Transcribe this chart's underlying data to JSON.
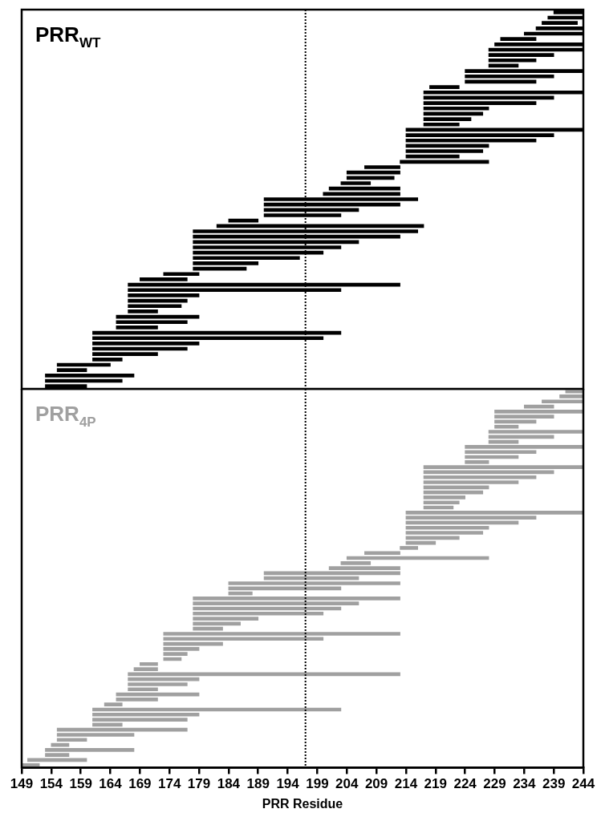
{
  "chart_data": [
    {
      "type": "bar",
      "orientation": "horizontal",
      "title": "PRR$_{WT}$",
      "tick_labels": false,
      "xlim": [
        149,
        244
      ],
      "xticks": [
        149,
        154,
        159,
        164,
        169,
        174,
        179,
        184,
        189,
        194,
        199,
        204,
        209,
        214,
        219,
        224,
        229,
        234,
        239,
        244
      ],
      "grid": false,
      "legend": false,
      "categories": [
        null,
        null,
        null,
        null,
        null,
        null,
        null,
        null,
        null,
        null,
        null,
        null,
        null,
        null,
        null,
        null,
        null,
        null,
        null,
        null,
        null,
        null,
        null,
        null,
        null,
        null,
        null,
        null,
        null,
        null,
        null,
        null,
        null,
        null,
        null,
        null,
        null,
        null,
        null,
        null,
        null,
        null,
        null,
        null,
        null,
        null,
        null,
        null,
        null,
        null,
        null,
        null,
        null,
        null,
        null,
        null,
        null,
        null,
        null,
        null,
        null,
        null,
        null,
        null,
        null,
        null,
        null,
        null,
        null,
        null,
        null
      ],
      "series": [
        {
          "color": "#000000",
          "base": [
            239,
            238,
            237,
            236,
            234,
            230,
            229,
            228,
            228,
            228,
            228,
            224,
            224,
            224,
            218,
            217,
            217,
            217,
            217,
            217,
            217,
            217,
            214,
            214,
            214,
            214,
            214,
            214,
            213,
            207,
            204,
            204,
            203,
            201,
            200,
            190,
            190,
            190,
            190,
            184,
            182,
            178,
            178,
            178,
            178,
            178,
            178,
            178,
            178,
            173,
            169,
            167,
            167,
            167,
            167,
            167,
            167,
            165,
            165,
            165,
            161,
            161,
            161,
            161,
            161,
            161,
            155,
            155,
            153,
            153,
            153
          ],
          "values": [
            5,
            6,
            6,
            8,
            10,
            6,
            15,
            16,
            11,
            8,
            5,
            20,
            15,
            12,
            5,
            27,
            22,
            19,
            11,
            10,
            8,
            6,
            30,
            25,
            22,
            14,
            13,
            9,
            15,
            6,
            9,
            8,
            5,
            12,
            13,
            26,
            23,
            16,
            13,
            5,
            35,
            38,
            35,
            28,
            25,
            22,
            18,
            11,
            9,
            6,
            8,
            46,
            36,
            12,
            10,
            9,
            5,
            14,
            12,
            7,
            42,
            39,
            18,
            16,
            11,
            5,
            9,
            5,
            15,
            13,
            7
          ]
        }
      ],
      "ref_lines": [
        {
          "axis": "x",
          "value": 197,
          "line_style": "dotted",
          "color": "#000000"
        }
      ]
    },
    {
      "type": "bar",
      "orientation": "horizontal",
      "title": "PRR$_{4P}$",
      "xlabel": "PRR Residue",
      "tick_labels": "x",
      "xlim": [
        149,
        244
      ],
      "xticks": [
        149,
        154,
        159,
        164,
        169,
        174,
        179,
        184,
        189,
        194,
        199,
        204,
        209,
        214,
        219,
        224,
        229,
        234,
        239,
        244
      ],
      "grid": false,
      "legend": false,
      "categories": [
        null,
        null,
        null,
        null,
        null,
        null,
        null,
        null,
        null,
        null,
        null,
        null,
        null,
        null,
        null,
        null,
        null,
        null,
        null,
        null,
        null,
        null,
        null,
        null,
        null,
        null,
        null,
        null,
        null,
        null,
        null,
        null,
        null,
        null,
        null,
        null,
        null,
        null,
        null,
        null,
        null,
        null,
        null,
        null,
        null,
        null,
        null,
        null,
        null,
        null,
        null,
        null,
        null,
        null,
        null,
        null,
        null,
        null,
        null,
        null,
        null,
        null,
        null,
        null,
        null,
        null,
        null,
        null,
        null,
        null,
        null,
        null,
        null,
        null,
        null
      ],
      "series": [
        {
          "color": "#a0a0a0",
          "base": [
            241,
            240,
            237,
            234,
            229,
            229,
            229,
            229,
            228,
            228,
            228,
            224,
            224,
            224,
            224,
            217,
            217,
            217,
            217,
            217,
            217,
            217,
            217,
            217,
            214,
            214,
            214,
            214,
            214,
            214,
            214,
            213,
            207,
            204,
            203,
            201,
            190,
            190,
            184,
            184,
            184,
            178,
            178,
            178,
            178,
            178,
            178,
            178,
            173,
            173,
            173,
            173,
            173,
            173,
            169,
            168,
            167,
            167,
            167,
            167,
            165,
            165,
            163,
            161,
            161,
            161,
            161,
            155,
            155,
            155,
            154,
            153,
            153,
            150,
            149
          ],
          "values": [
            3,
            4,
            7,
            5,
            15,
            10,
            7,
            4,
            16,
            11,
            5,
            20,
            12,
            9,
            4,
            27,
            22,
            19,
            16,
            11,
            10,
            7,
            6,
            5,
            30,
            22,
            19,
            14,
            13,
            9,
            5,
            3,
            6,
            24,
            5,
            12,
            23,
            16,
            29,
            19,
            4,
            35,
            28,
            25,
            22,
            11,
            8,
            5,
            40,
            27,
            10,
            6,
            4,
            3,
            3,
            4,
            46,
            12,
            10,
            5,
            14,
            7,
            3,
            42,
            18,
            16,
            5,
            22,
            13,
            5,
            3,
            15,
            4,
            10,
            3
          ]
        }
      ],
      "ref_lines": [
        {
          "axis": "x",
          "value": 197,
          "line_style": "dotted",
          "color": "#000000"
        }
      ]
    }
  ]
}
